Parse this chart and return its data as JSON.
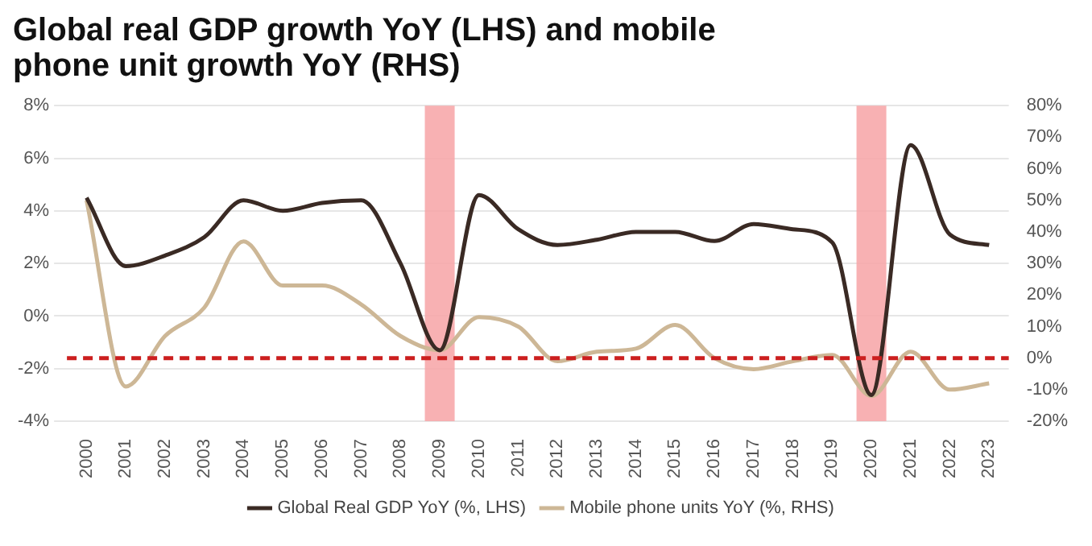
{
  "chart_data": {
    "type": "line",
    "title": "Global real GDP growth YoY (LHS) and mobile phone unit growth YoY (RHS)",
    "categories": [
      "2000",
      "2001",
      "2002",
      "2003",
      "2004",
      "2005",
      "2006",
      "2007",
      "2008",
      "2009",
      "2010",
      "2011",
      "2012",
      "2013",
      "2014",
      "2015",
      "2016",
      "2017",
      "2018",
      "2019",
      "2020",
      "2021",
      "2022",
      "2023"
    ],
    "series": [
      {
        "name": "Global Real GDP YoY (%, LHS)",
        "color": "#3a2a24",
        "values": [
          4.5,
          1.9,
          2.3,
          3.0,
          4.4,
          4.0,
          4.3,
          4.4,
          2.0,
          -1.3,
          4.6,
          3.3,
          2.7,
          2.9,
          3.2,
          3.2,
          2.85,
          3.5,
          3.3,
          2.8,
          -3.0,
          6.5,
          3.1,
          2.7
        ]
      },
      {
        "name": "Mobile phone units YoY (%, RHS)",
        "color": "#cdb796",
        "axis": "y2",
        "values": [
          50,
          -9,
          7,
          16,
          37,
          23,
          23,
          17,
          7,
          2.5,
          13,
          10,
          -1,
          2,
          3,
          10.5,
          0,
          -3.5,
          -1,
          1,
          -12,
          2,
          -10,
          -8
        ]
      }
    ],
    "ylim": [
      -4,
      8
    ],
    "yticks": [
      {
        "value": -4,
        "label": "-4%"
      },
      {
        "value": -2,
        "label": "-2%"
      },
      {
        "value": 0,
        "label": "0%"
      },
      {
        "value": 2,
        "label": "2%"
      },
      {
        "value": 4,
        "label": "4%"
      },
      {
        "value": 6,
        "label": "6%"
      },
      {
        "value": 8,
        "label": "8%"
      }
    ],
    "y2lim": [
      -20,
      80
    ],
    "y2ticks": [
      {
        "value": -20,
        "label": "-20%"
      },
      {
        "value": -10,
        "label": "-10%"
      },
      {
        "value": 0,
        "label": "0%"
      },
      {
        "value": 10,
        "label": "10%"
      },
      {
        "value": 20,
        "label": "20%"
      },
      {
        "value": 30,
        "label": "30%"
      },
      {
        "value": 40,
        "label": "40%"
      },
      {
        "value": 50,
        "label": "50%"
      },
      {
        "value": 60,
        "label": "60%"
      },
      {
        "value": 70,
        "label": "70%"
      },
      {
        "value": 80,
        "label": "80%"
      }
    ],
    "ref_lines": [
      {
        "axis": "y2",
        "value": 0,
        "color": "#cc1f1f",
        "line_style": "dashed"
      }
    ],
    "bands": [
      {
        "axis": "x",
        "from": "2009",
        "to": "2009",
        "color": "#f7a3a6"
      },
      {
        "axis": "x",
        "from": "2020",
        "to": "2020",
        "color": "#f7a3a6"
      }
    ],
    "grid": "y",
    "legend": "bottom",
    "marker": "none",
    "line_style": "solid"
  }
}
